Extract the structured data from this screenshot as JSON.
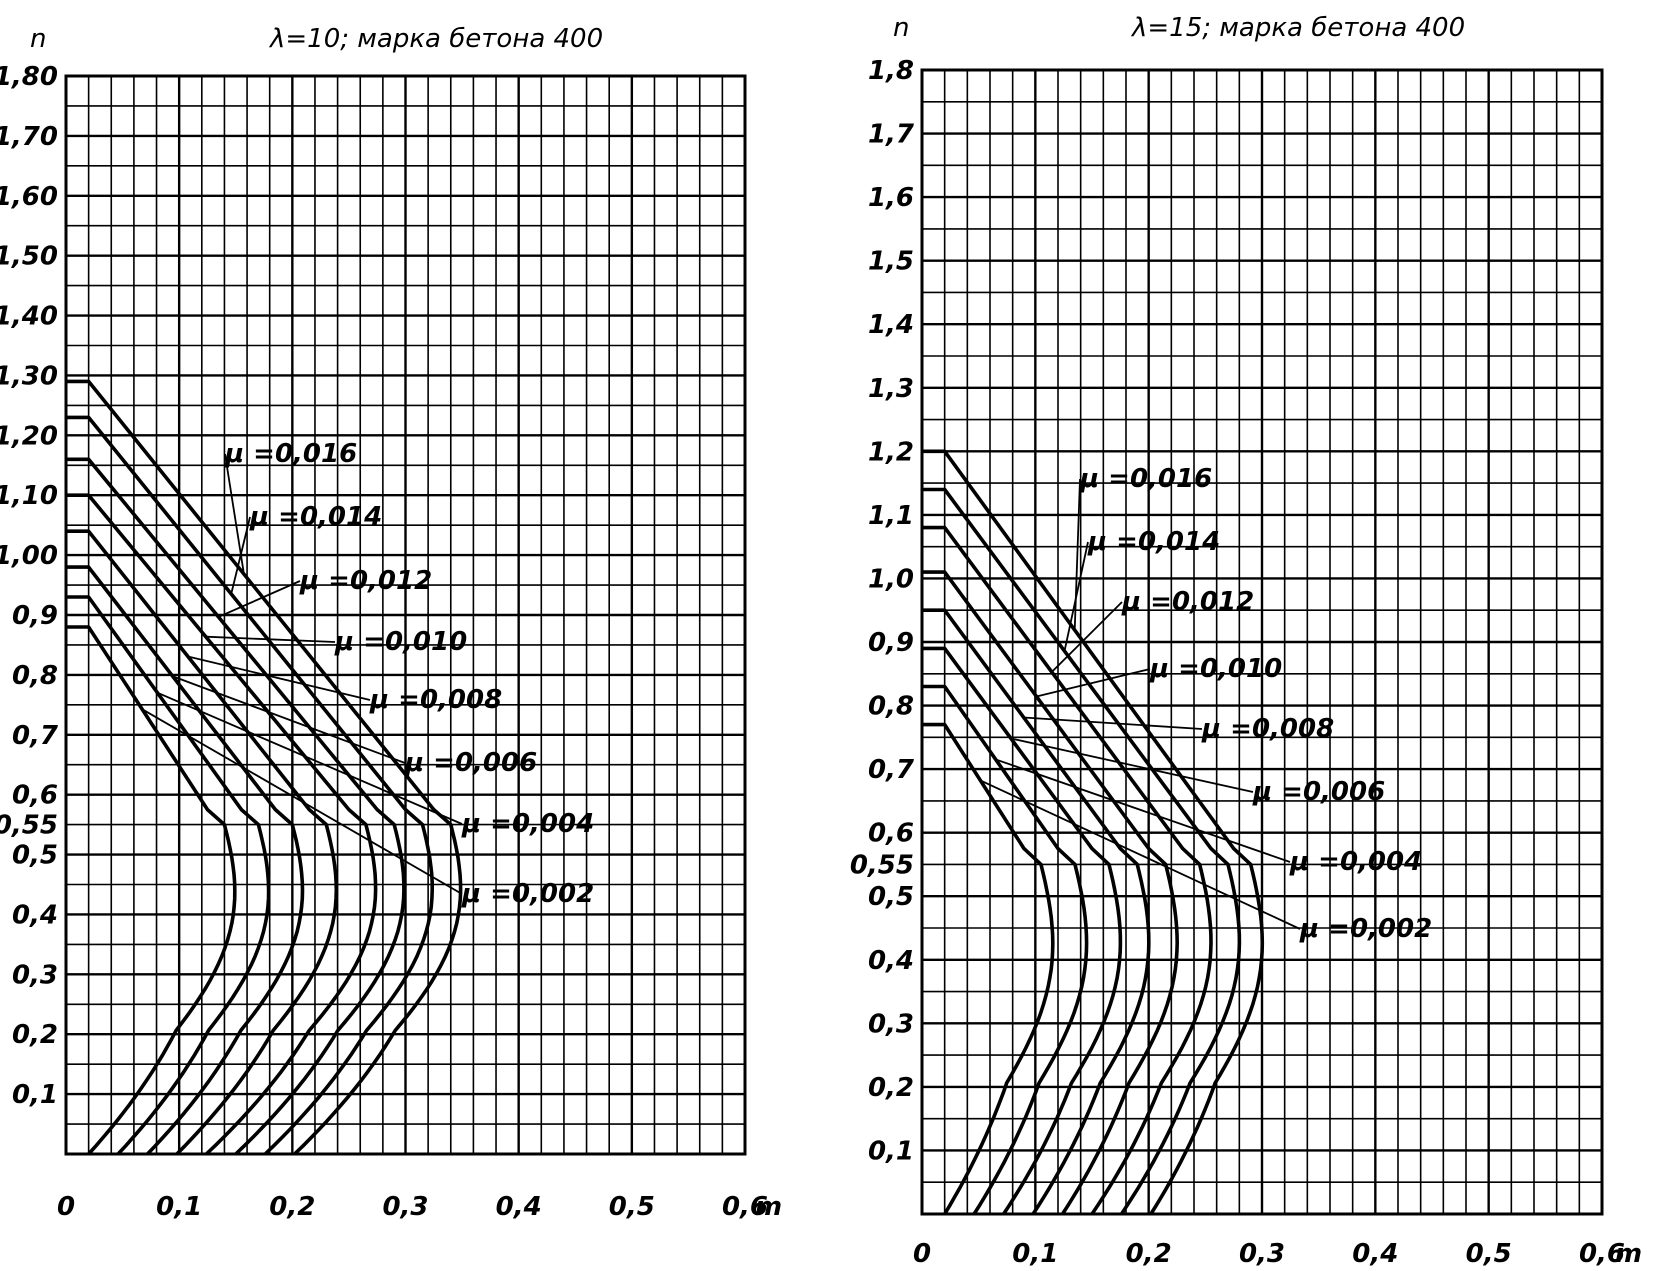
{
  "chart_data": [
    {
      "type": "line",
      "title": "λ=10; марка бетона 400",
      "ylabel": "n",
      "xlabel": "m",
      "ylim": [
        0,
        1.8
      ],
      "xlim": [
        0,
        0.6
      ],
      "grid": true,
      "y_tick_labels": [
        "1,80",
        "1,70",
        "1,60",
        "1,50",
        "1,40",
        "1,30",
        "1,20",
        "1,10",
        "1,00",
        "0,9",
        "0,8",
        "0,7",
        "0,6",
        "0,55",
        "0,5",
        "0,4",
        "0,3",
        "0,2",
        "0,1"
      ],
      "y_tick_values": [
        1.8,
        1.7,
        1.6,
        1.5,
        1.4,
        1.3,
        1.2,
        1.1,
        1.0,
        0.9,
        0.8,
        0.7,
        0.6,
        0.55,
        0.5,
        0.4,
        0.3,
        0.2,
        0.1
      ],
      "x_tick_labels": [
        "0",
        "0,1",
        "0,2",
        "0,3",
        "0,4",
        "0,5",
        "0,6"
      ],
      "x_tick_values": [
        0,
        0.1,
        0.2,
        0.3,
        0.4,
        0.5,
        0.6
      ],
      "series": [
        {
          "name": "μ =0,016",
          "plateau_n": 1.29,
          "knee_m": 0.34
        },
        {
          "name": "μ =0,014",
          "plateau_n": 1.23,
          "knee_m": 0.315
        },
        {
          "name": "μ =0,012",
          "plateau_n": 1.16,
          "knee_m": 0.29
        },
        {
          "name": "μ =0,010",
          "plateau_n": 1.1,
          "knee_m": 0.265
        },
        {
          "name": "μ =0,008",
          "plateau_n": 1.04,
          "knee_m": 0.23
        },
        {
          "name": "μ =0,006",
          "plateau_n": 0.98,
          "knee_m": 0.2
        },
        {
          "name": "μ =0,004",
          "plateau_n": 0.93,
          "knee_m": 0.17
        },
        {
          "name": "μ =0,002",
          "plateau_n": 0.88,
          "knee_m": 0.14
        }
      ]
    },
    {
      "type": "line",
      "title": "λ=15; марка бетона 400",
      "ylabel": "n",
      "xlabel": "m",
      "ylim": [
        0,
        1.8
      ],
      "xlim": [
        0,
        0.6
      ],
      "grid": true,
      "y_tick_labels": [
        "1,8",
        "1,7",
        "1,6",
        "1,5",
        "1,4",
        "1,3",
        "1,2",
        "1,1",
        "1,0",
        "0,9",
        "0,8",
        "0,7",
        "0,6",
        "0,55",
        "0,5",
        "0,4",
        "0,3",
        "0,2",
        "0,1"
      ],
      "y_tick_values": [
        1.8,
        1.7,
        1.6,
        1.5,
        1.4,
        1.3,
        1.2,
        1.1,
        1.0,
        0.9,
        0.8,
        0.7,
        0.6,
        0.55,
        0.5,
        0.4,
        0.3,
        0.2,
        0.1
      ],
      "x_tick_labels": [
        "0",
        "0,1",
        "0,2",
        "0,3",
        "0,4",
        "0,5",
        "0,6"
      ],
      "x_tick_values": [
        0,
        0.1,
        0.2,
        0.3,
        0.4,
        0.5,
        0.6
      ],
      "series": [
        {
          "name": "μ =0,016",
          "plateau_n": 1.2,
          "knee_m": 0.29
        },
        {
          "name": "μ =0,014",
          "plateau_n": 1.14,
          "knee_m": 0.27
        },
        {
          "name": "μ =0,012",
          "plateau_n": 1.08,
          "knee_m": 0.245
        },
        {
          "name": "μ =0,010",
          "plateau_n": 1.01,
          "knee_m": 0.215
        },
        {
          "name": "μ =0,008",
          "plateau_n": 0.95,
          "knee_m": 0.19
        },
        {
          "name": "μ =0,006",
          "plateau_n": 0.89,
          "knee_m": 0.165
        },
        {
          "name": "μ =0,004",
          "plateau_n": 0.83,
          "knee_m": 0.135
        },
        {
          "name": "μ =0,002",
          "plateau_n": 0.77,
          "knee_m": 0.105
        }
      ]
    }
  ]
}
